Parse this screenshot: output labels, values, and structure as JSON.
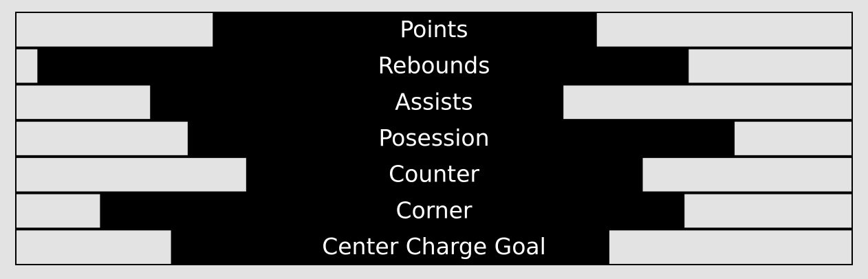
{
  "chart_data": {
    "type": "bar",
    "title": "",
    "orientation": "horizontal-diverging",
    "value_unit": "percent_of_half_width",
    "background_color": "#000000",
    "bar_color": "#e3e3e3",
    "page_color": "#e3e3e3",
    "categories": [
      "Points",
      "Rebounds",
      "Assists",
      "Posession",
      "Counter",
      "Corner",
      "Center Charge Goal"
    ],
    "series": [
      {
        "name": "left",
        "side": "left",
        "values": [
          47,
          5,
          32,
          41,
          55,
          20,
          37
        ]
      },
      {
        "name": "right",
        "side": "right",
        "values": [
          61,
          39,
          69,
          28,
          50,
          40,
          58
        ]
      }
    ]
  }
}
